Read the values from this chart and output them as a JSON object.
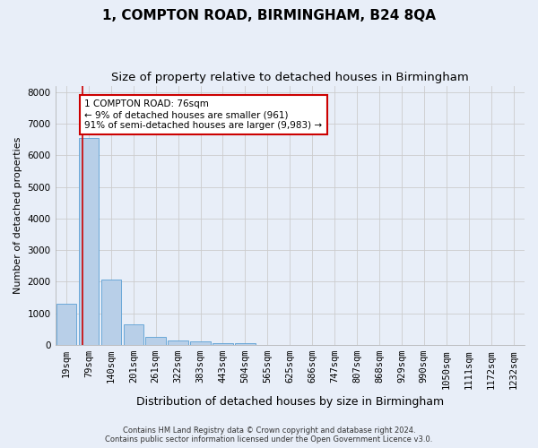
{
  "title": "1, COMPTON ROAD, BIRMINGHAM, B24 8QA",
  "subtitle": "Size of property relative to detached houses in Birmingham",
  "xlabel": "Distribution of detached houses by size in Birmingham",
  "ylabel": "Number of detached properties",
  "footer_line1": "Contains HM Land Registry data © Crown copyright and database right 2024.",
  "footer_line2": "Contains public sector information licensed under the Open Government Licence v3.0.",
  "bar_labels": [
    "19sqm",
    "79sqm",
    "140sqm",
    "201sqm",
    "261sqm",
    "322sqm",
    "383sqm",
    "443sqm",
    "504sqm",
    "565sqm",
    "625sqm",
    "686sqm",
    "747sqm",
    "807sqm",
    "868sqm",
    "929sqm",
    "990sqm",
    "1050sqm",
    "1111sqm",
    "1172sqm",
    "1232sqm"
  ],
  "bar_values": [
    1300,
    6550,
    2080,
    650,
    250,
    130,
    105,
    65,
    65,
    0,
    0,
    0,
    0,
    0,
    0,
    0,
    0,
    0,
    0,
    0,
    0
  ],
  "bar_color": "#b8cfe8",
  "bar_edge_color": "#5a9fd4",
  "annotation_text": "1 COMPTON ROAD: 76sqm\n← 9% of detached houses are smaller (961)\n91% of semi-detached houses are larger (9,983) →",
  "annotation_box_color": "#cc0000",
  "annotation_text_color": "#000000",
  "vline_color": "#cc0000",
  "ylim": [
    0,
    8200
  ],
  "yticks": [
    0,
    1000,
    2000,
    3000,
    4000,
    5000,
    6000,
    7000,
    8000
  ],
  "grid_color": "#cccccc",
  "bg_color": "#e8eef8",
  "plot_bg_color": "#e8eef8",
  "title_fontsize": 11,
  "subtitle_fontsize": 9.5,
  "xlabel_fontsize": 9,
  "ylabel_fontsize": 8,
  "tick_fontsize": 7.5,
  "annotation_fontsize": 7.5,
  "footer_fontsize": 6,
  "vline_pos": 0.72
}
